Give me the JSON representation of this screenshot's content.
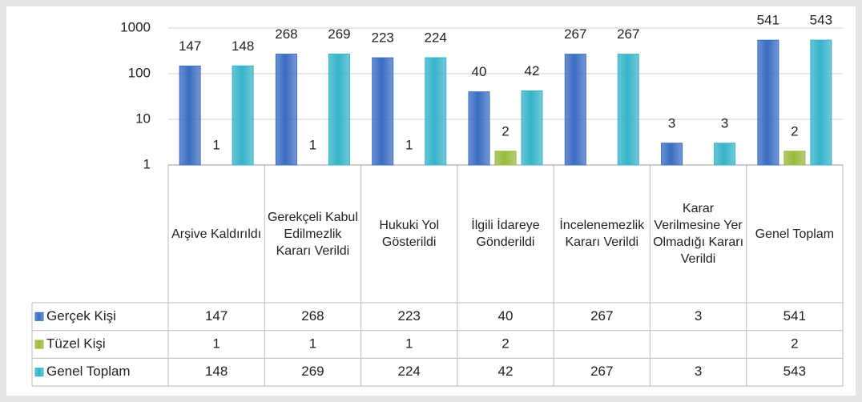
{
  "chart_data": {
    "type": "bar",
    "log_scale": true,
    "grid": true,
    "categories": [
      "Arşive Kaldırıldı",
      "Gerekçeli Kabul Edilmezlik Kararı Verildi",
      "Hukuki Yol Gösterildi",
      "İlgili İdareye Gönderildi",
      "İncelenemezlik Kararı Verildi",
      "Karar Verilmesine Yer Olmadığı Kararı Verildi",
      "Genel Toplam"
    ],
    "series": [
      {
        "name": "Gerçek Kişi",
        "color": "#3a6cc2",
        "values": [
          147,
          268,
          223,
          40,
          267,
          3,
          541
        ]
      },
      {
        "name": "Tüzel Kişi",
        "color": "#98b93a",
        "values": [
          1,
          1,
          1,
          2,
          null,
          null,
          2
        ]
      },
      {
        "name": "Genel Toplam",
        "color": "#35b3c9",
        "values": [
          148,
          269,
          224,
          42,
          267,
          3,
          543
        ]
      }
    ],
    "ylim": [
      1,
      1000
    ],
    "yticks": [
      1,
      10,
      100,
      1000
    ],
    "data_table": true
  }
}
